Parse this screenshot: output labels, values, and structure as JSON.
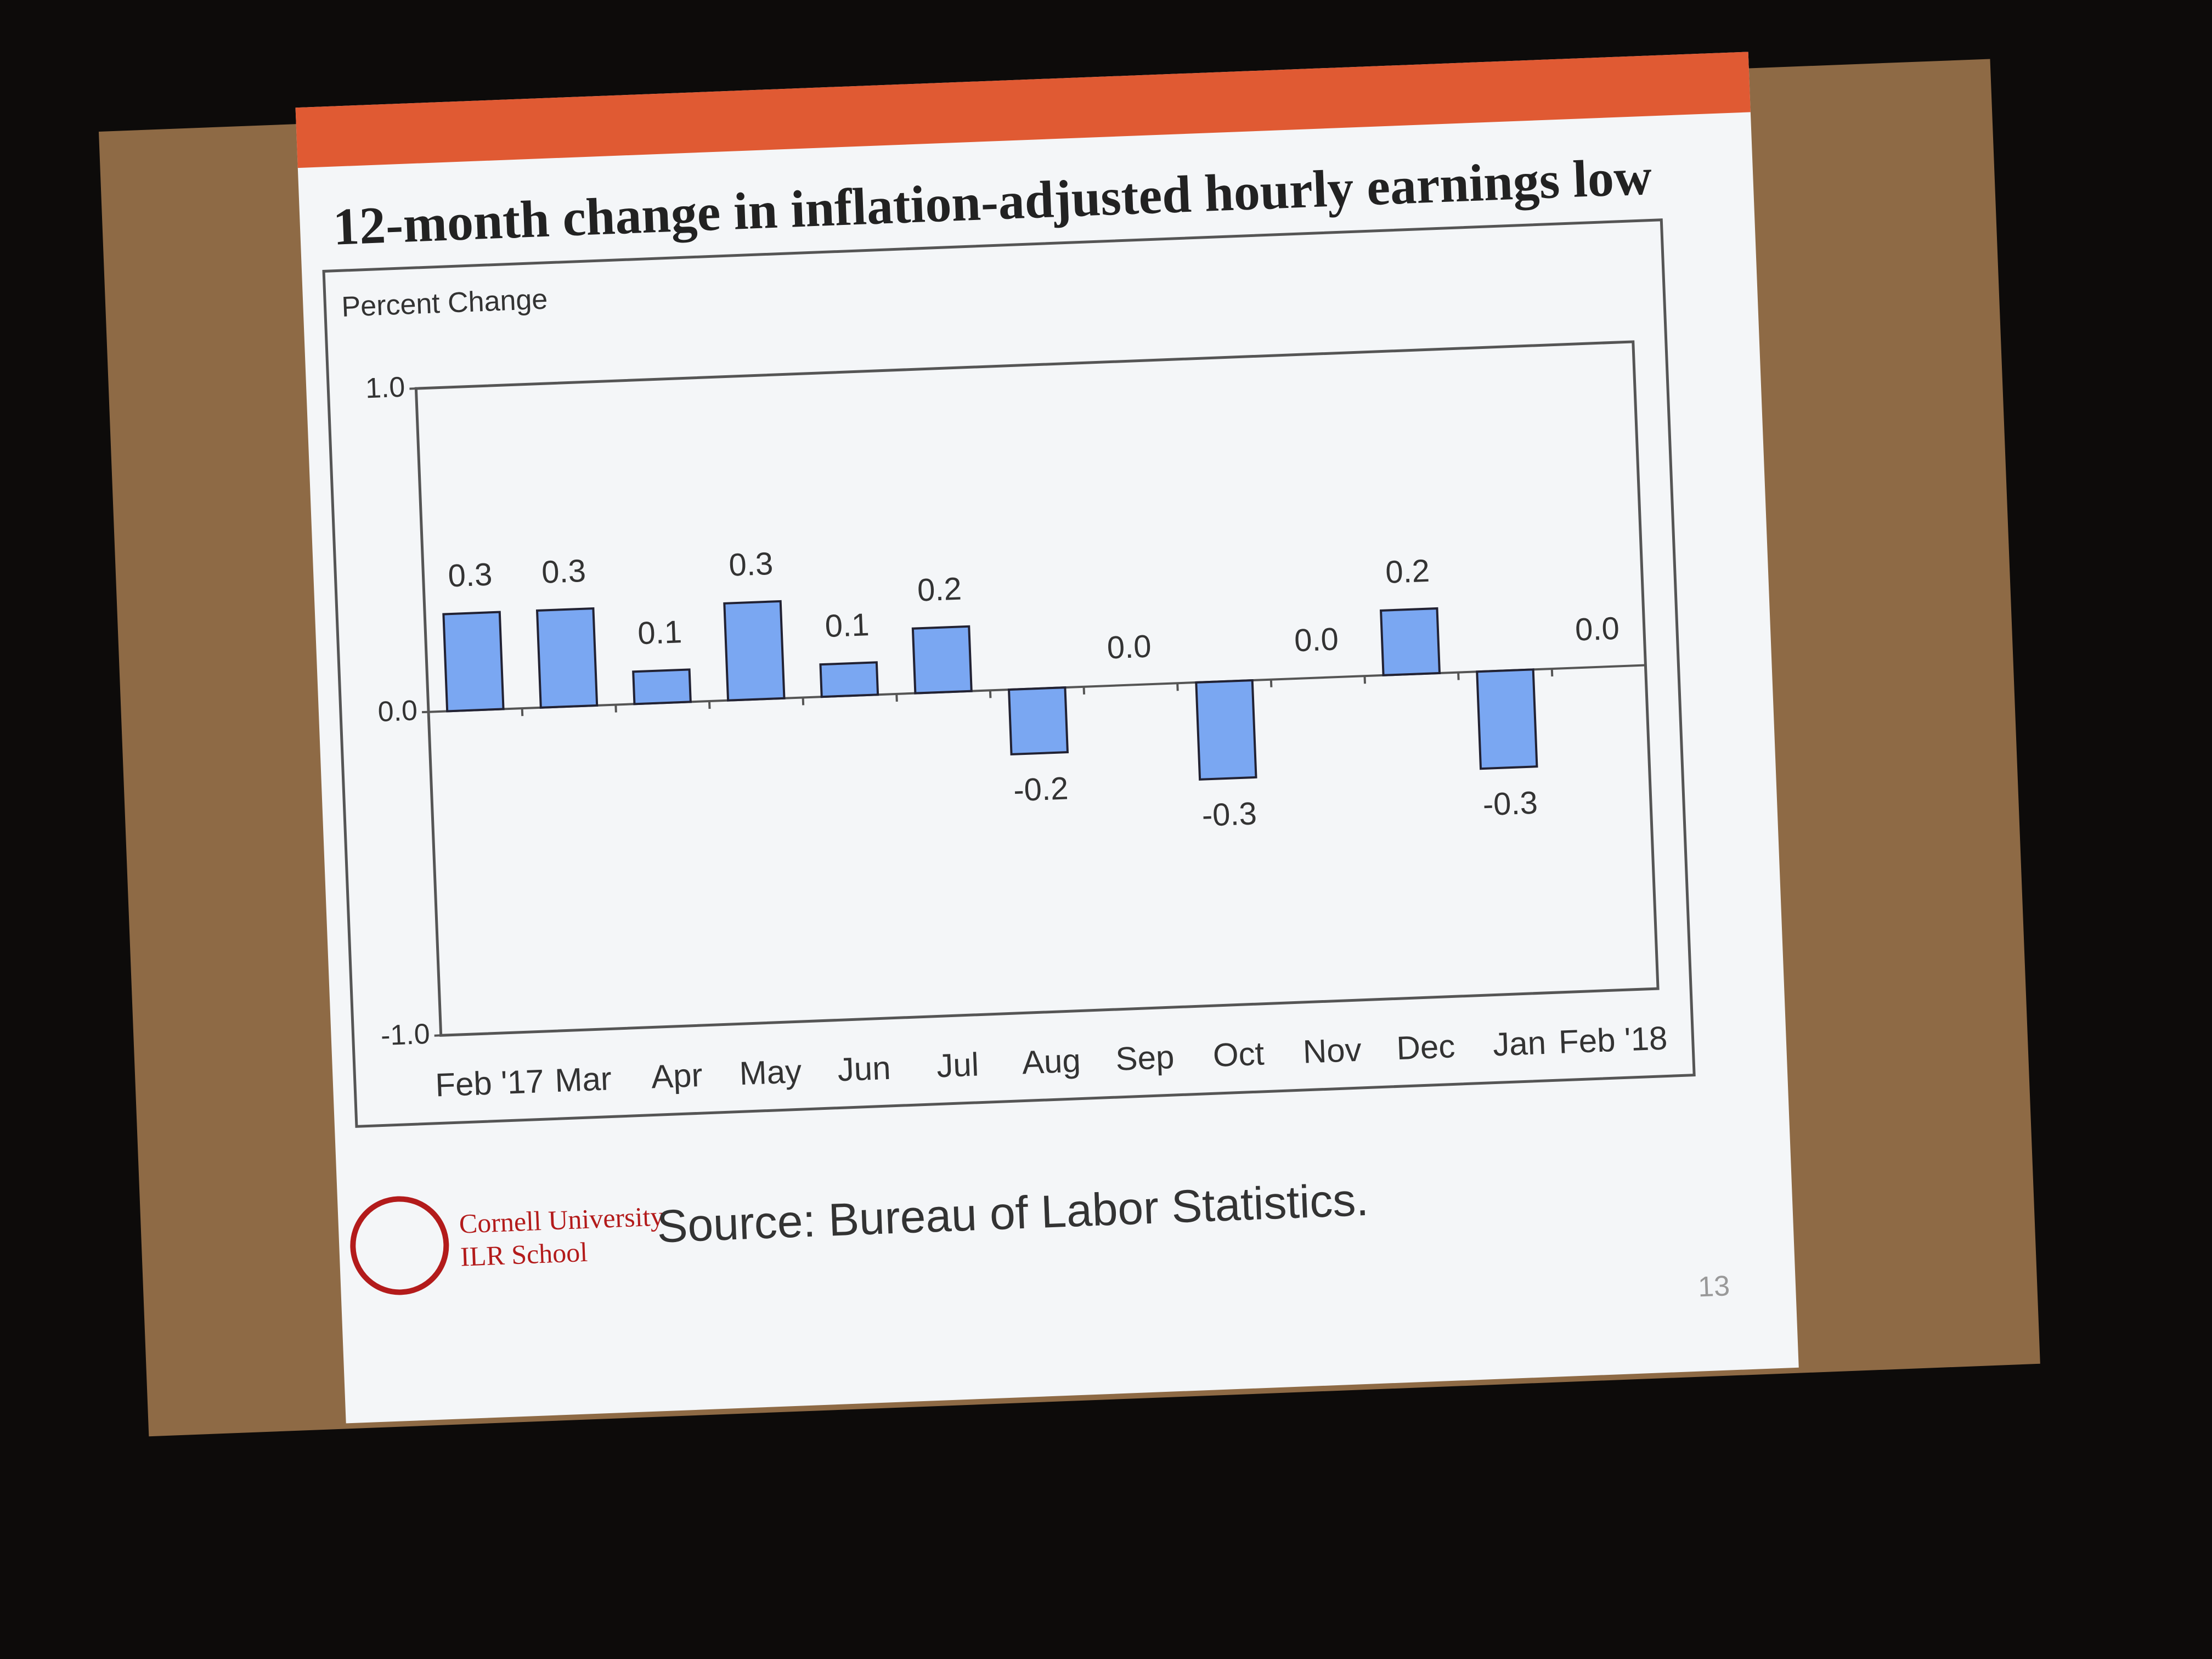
{
  "title": "12-month change in inflation-adjusted hourly earnings low",
  "chart_data": {
    "type": "bar",
    "y_label": "Percent Change",
    "categories": [
      "Feb '17",
      "Mar",
      "Apr",
      "May",
      "Jun",
      "Jul",
      "Aug",
      "Sep",
      "Oct",
      "Nov",
      "Dec",
      "Jan",
      "Feb '18"
    ],
    "values": [
      0.3,
      0.3,
      0.1,
      0.3,
      0.1,
      0.2,
      -0.2,
      0.0,
      -0.3,
      0.0,
      0.2,
      -0.3,
      0.0
    ],
    "value_labels": [
      "0.3",
      "0.3",
      "0.1",
      "0.3",
      "0.1",
      "0.2",
      "-0.2",
      "0.0",
      "-0.3",
      "0.0",
      "0.2",
      "-0.3",
      "0.0"
    ],
    "color": "#7aa7f2",
    "ylim": [
      -1,
      1
    ],
    "yticks": [
      {
        "value": -1,
        "label": "-1.0"
      },
      {
        "value": 0,
        "label": "0.0"
      },
      {
        "value": 1,
        "label": "1.0"
      }
    ]
  },
  "footer": {
    "logo_line1": "Cornell University",
    "logo_line2": "ILR School",
    "source": "Source:  Bureau of Labor Statistics.",
    "page_number": "13"
  }
}
